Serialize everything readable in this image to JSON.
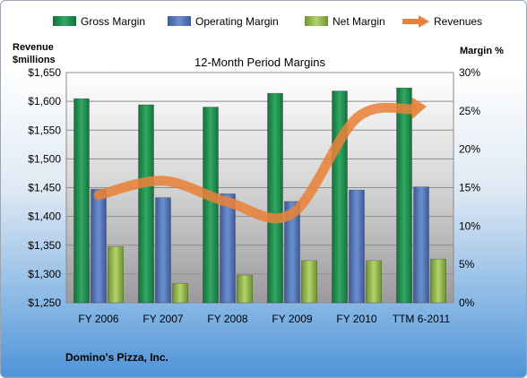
{
  "chart_data": {
    "type": "bar",
    "title": "12-Month Period Margins",
    "company": "Domino's Pizza, Inc.",
    "left_axis_label": [
      "Revenue",
      "$millions"
    ],
    "right_axis_label": "Margin %",
    "categories": [
      "FY 2006",
      "FY 2007",
      "FY 2008",
      "FY 2009",
      "FY 2010",
      "TTM 6-2011"
    ],
    "left_ticks": [
      "$1,250",
      "$1,300",
      "$1,350",
      "$1,400",
      "$1,450",
      "$1,500",
      "$1,550",
      "$1,600",
      "$1,650"
    ],
    "right_ticks": [
      "0%",
      "5%",
      "10%",
      "15%",
      "20%",
      "25%",
      "30%"
    ],
    "left_ylim": [
      1250,
      1650
    ],
    "right_ylim": [
      0,
      30
    ],
    "series": [
      {
        "name": "Gross Margin",
        "axis": "right",
        "type": "bar",
        "color": "#1f8a4c",
        "values": [
          26.6,
          25.8,
          25.5,
          27.3,
          27.6,
          28.0
        ]
      },
      {
        "name": "Operating Margin",
        "axis": "right",
        "type": "bar",
        "color": "#4a6fb5",
        "values": [
          14.8,
          13.7,
          14.2,
          13.2,
          14.7,
          15.1
        ]
      },
      {
        "name": "Net Margin",
        "axis": "right",
        "type": "bar",
        "color": "#8fb44a",
        "values": [
          7.3,
          2.5,
          3.6,
          5.5,
          5.5,
          5.7
        ]
      },
      {
        "name": "Revenues",
        "axis": "left",
        "type": "line",
        "color": "#e8823a",
        "values": [
          1437,
          1462,
          1425,
          1405,
          1571,
          1588
        ]
      }
    ],
    "grid": "horizontal",
    "legend_position": "top"
  }
}
